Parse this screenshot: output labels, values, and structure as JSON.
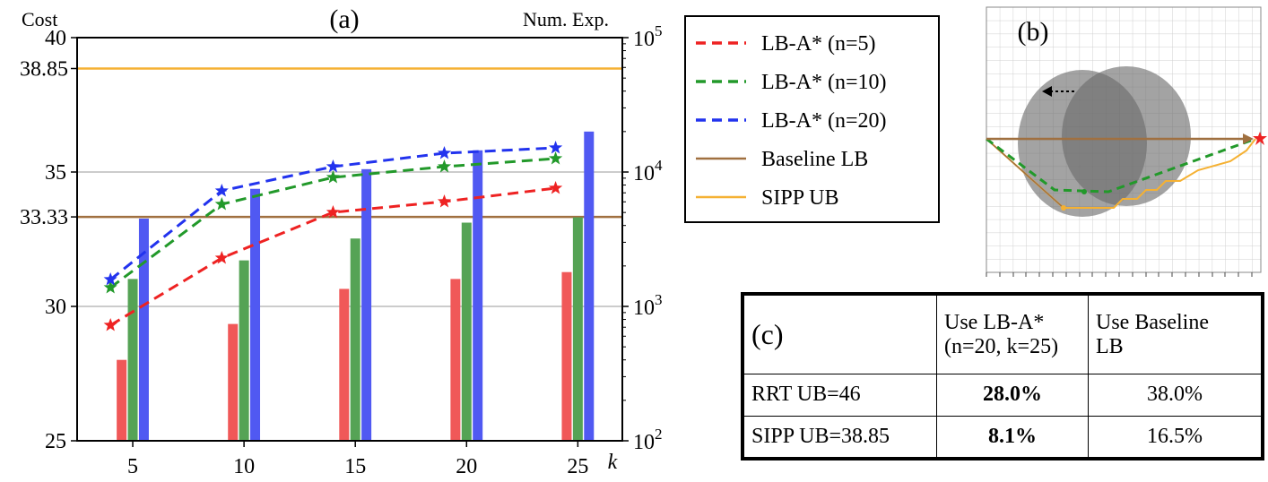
{
  "chart_data": [
    {
      "type": "bar+line",
      "panel_label": "(a)",
      "xlabel": "k",
      "ylabel_left": "Cost",
      "ylabel_right": "Num. Exp.",
      "x_ticks": [
        5,
        10,
        15,
        20,
        25
      ],
      "x_range": [
        2.5,
        27
      ],
      "y_left_ticks": [
        "25",
        "30",
        "35",
        "40"
      ],
      "y_left_extra_ticks": [
        "33.33",
        "38.85"
      ],
      "y_left_range": [
        25,
        40
      ],
      "y_right_ticks": [
        "10",
        "10",
        "10",
        "10"
      ],
      "y_right_exponents": [
        "2",
        "3",
        "4",
        "5"
      ],
      "y_right_range_log10": [
        2,
        5
      ],
      "gridlines_cost": [
        30,
        35
      ],
      "series": [
        {
          "name": "LB-A* (n=5)",
          "color": "#ee2222",
          "k": [
            4,
            9,
            14,
            19,
            24
          ],
          "cost": [
            29.3,
            31.8,
            33.5,
            33.9,
            34.4
          ]
        },
        {
          "name": "LB-A* (n=10)",
          "color": "#22992a",
          "k": [
            4,
            9,
            14,
            19,
            24
          ],
          "cost": [
            30.7,
            33.8,
            34.8,
            35.2,
            35.5
          ]
        },
        {
          "name": "LB-A* (n=20)",
          "color": "#2233ee",
          "k": [
            4,
            9,
            14,
            19,
            24
          ],
          "cost": [
            31.0,
            34.3,
            35.2,
            35.7,
            35.9
          ]
        }
      ],
      "bars": [
        {
          "name": "n=5",
          "color": "#f05858",
          "x": [
            4.5,
            9.5,
            14.5,
            19.5,
            24.5
          ],
          "num_exp": [
            400,
            740,
            1350,
            1600,
            1800
          ]
        },
        {
          "name": "n=10",
          "color": "#55a355",
          "x": [
            5.0,
            10.0,
            15.0,
            20.0,
            25.0
          ],
          "num_exp": [
            1600,
            2200,
            3200,
            4200,
            4600
          ]
        },
        {
          "name": "n=20",
          "color": "#5059f2",
          "x": [
            5.5,
            10.5,
            15.5,
            20.5,
            25.5
          ],
          "num_exp": [
            4500,
            7500,
            10500,
            14500,
            20000
          ]
        }
      ],
      "reference_lines": [
        {
          "name": "Baseline LB",
          "value": 33.33,
          "color": "#a07040"
        },
        {
          "name": "SIPP UB",
          "value": 38.85,
          "color": "#f5b133"
        }
      ],
      "legend": {
        "placement": "right",
        "entries": [
          {
            "label": "LB-A* (n=5)",
            "style": "dashed",
            "color": "#ee2222"
          },
          {
            "label": "LB-A* (n=10)",
            "style": "dashed",
            "color": "#22992a"
          },
          {
            "label": "LB-A* (n=20)",
            "style": "dashed",
            "color": "#2233ee"
          },
          {
            "label": "Baseline LB",
            "style": "solid",
            "color": "#a07040"
          },
          {
            "label": "SIPP UB",
            "style": "solid",
            "color": "#f5b133"
          }
        ]
      }
    }
  ],
  "panel_b": {
    "label": "(b)"
  },
  "table_c": {
    "label": "(c)",
    "col1": "Use LB-A*",
    "col1_sub": "(n=20, k=25)",
    "col2": "Use Baseline",
    "col2_sub": "LB",
    "rows": [
      {
        "name": "RRT UB=46",
        "lba": "28.0%",
        "base": "38.0%"
      },
      {
        "name": "SIPP UB=38.85",
        "lba": "8.1%",
        "base": "16.5%"
      }
    ]
  }
}
